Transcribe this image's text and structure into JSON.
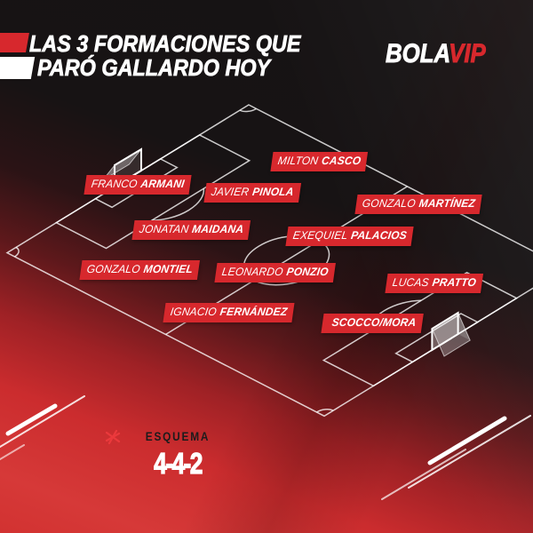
{
  "header": {
    "title_line1": "LAS 3 FORMACIONES QUE",
    "title_line2": "PARÓ GALLARDO HOY",
    "logo": {
      "part1": "BOLA",
      "part2": "VIP"
    }
  },
  "players": [
    {
      "first": "FRANCO",
      "last": "ARMANI"
    },
    {
      "first": "MILTON",
      "last": "CASCO"
    },
    {
      "first": "JAVIER",
      "last": "PINOLA"
    },
    {
      "first": "GONZALO",
      "last": "MARTÍNEZ"
    },
    {
      "first": "JONATAN",
      "last": "MAIDANA"
    },
    {
      "first": "EXEQUIEL",
      "last": "PALACIOS"
    },
    {
      "first": "GONZALO",
      "last": "MONTIEL"
    },
    {
      "first": "LEONARDO",
      "last": "PONZIO"
    },
    {
      "first": "LUCAS",
      "last": "PRATTO"
    },
    {
      "first": "IGNACIO",
      "last": "FERNÁNDEZ"
    },
    {
      "first": "",
      "last": "SCOCCO/MORA"
    }
  ],
  "formation": {
    "label": "ESQUEMA",
    "value": "4-4-2"
  },
  "colors": {
    "accent_red": "#d7282d",
    "background_top": "#151314",
    "background_bottom": "#d23231",
    "pitch_line": "#ffffff",
    "formation_label_color": "#1d1b1c"
  }
}
